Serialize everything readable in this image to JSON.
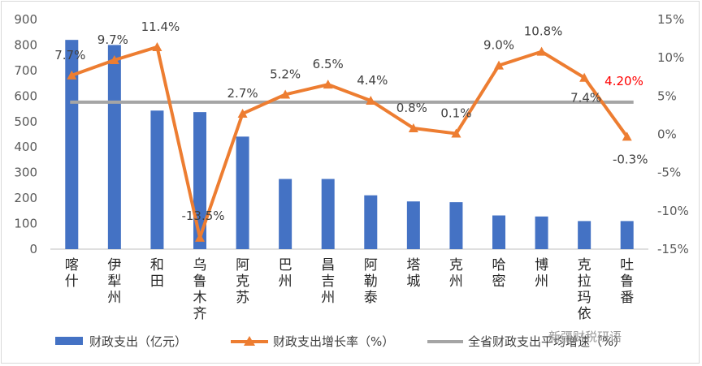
{
  "chart_data": {
    "type": "bar",
    "categories": [
      "喀什",
      "伊犁州",
      "和田",
      "乌鲁木齐",
      "阿克苏",
      "巴州",
      "昌吉州",
      "阿勒泰",
      "塔城",
      "克州",
      "哈密",
      "博州",
      "克拉玛依",
      "吐鲁番"
    ],
    "series": [
      {
        "name": "财政支出（亿元）",
        "type": "bar",
        "axis": "left",
        "color": "#4472c4",
        "values": [
          820,
          800,
          543,
          537,
          441,
          275,
          275,
          211,
          187,
          184,
          132,
          128,
          110,
          110
        ]
      },
      {
        "name": "财政支出增长率（%）",
        "type": "line",
        "axis": "right",
        "color": "#ed7d31",
        "values": [
          7.7,
          9.7,
          11.4,
          -13.5,
          2.7,
          5.2,
          6.5,
          4.4,
          0.8,
          0.1,
          9.0,
          10.8,
          7.4,
          -0.3
        ],
        "labels": [
          "7.7%",
          "9.7%",
          "11.4%",
          "-13.5%",
          "2.7%",
          "5.2%",
          "6.5%",
          "4.4%",
          "0.8%",
          "0.1%",
          "9.0%",
          "10.8%",
          "7.4%",
          "-0.3%"
        ]
      },
      {
        "name": "全省财政支出平均增速（%）",
        "type": "line",
        "axis": "right",
        "color": "#a5a5a5",
        "value": 4.2,
        "label": "4.20%",
        "label_color": "#ff0000"
      }
    ],
    "y_left": {
      "ylim": [
        0,
        900
      ],
      "ticks": [
        "0",
        "100",
        "200",
        "300",
        "400",
        "500",
        "600",
        "700",
        "800",
        "900"
      ]
    },
    "y_right": {
      "ylim": [
        -15,
        15
      ],
      "ticks": [
        "-15%",
        "-10%",
        "-5%",
        "0%",
        "5%",
        "10%",
        "15%"
      ]
    },
    "legend_position": "bottom",
    "grid": false
  },
  "watermark": "新疆财税研语"
}
